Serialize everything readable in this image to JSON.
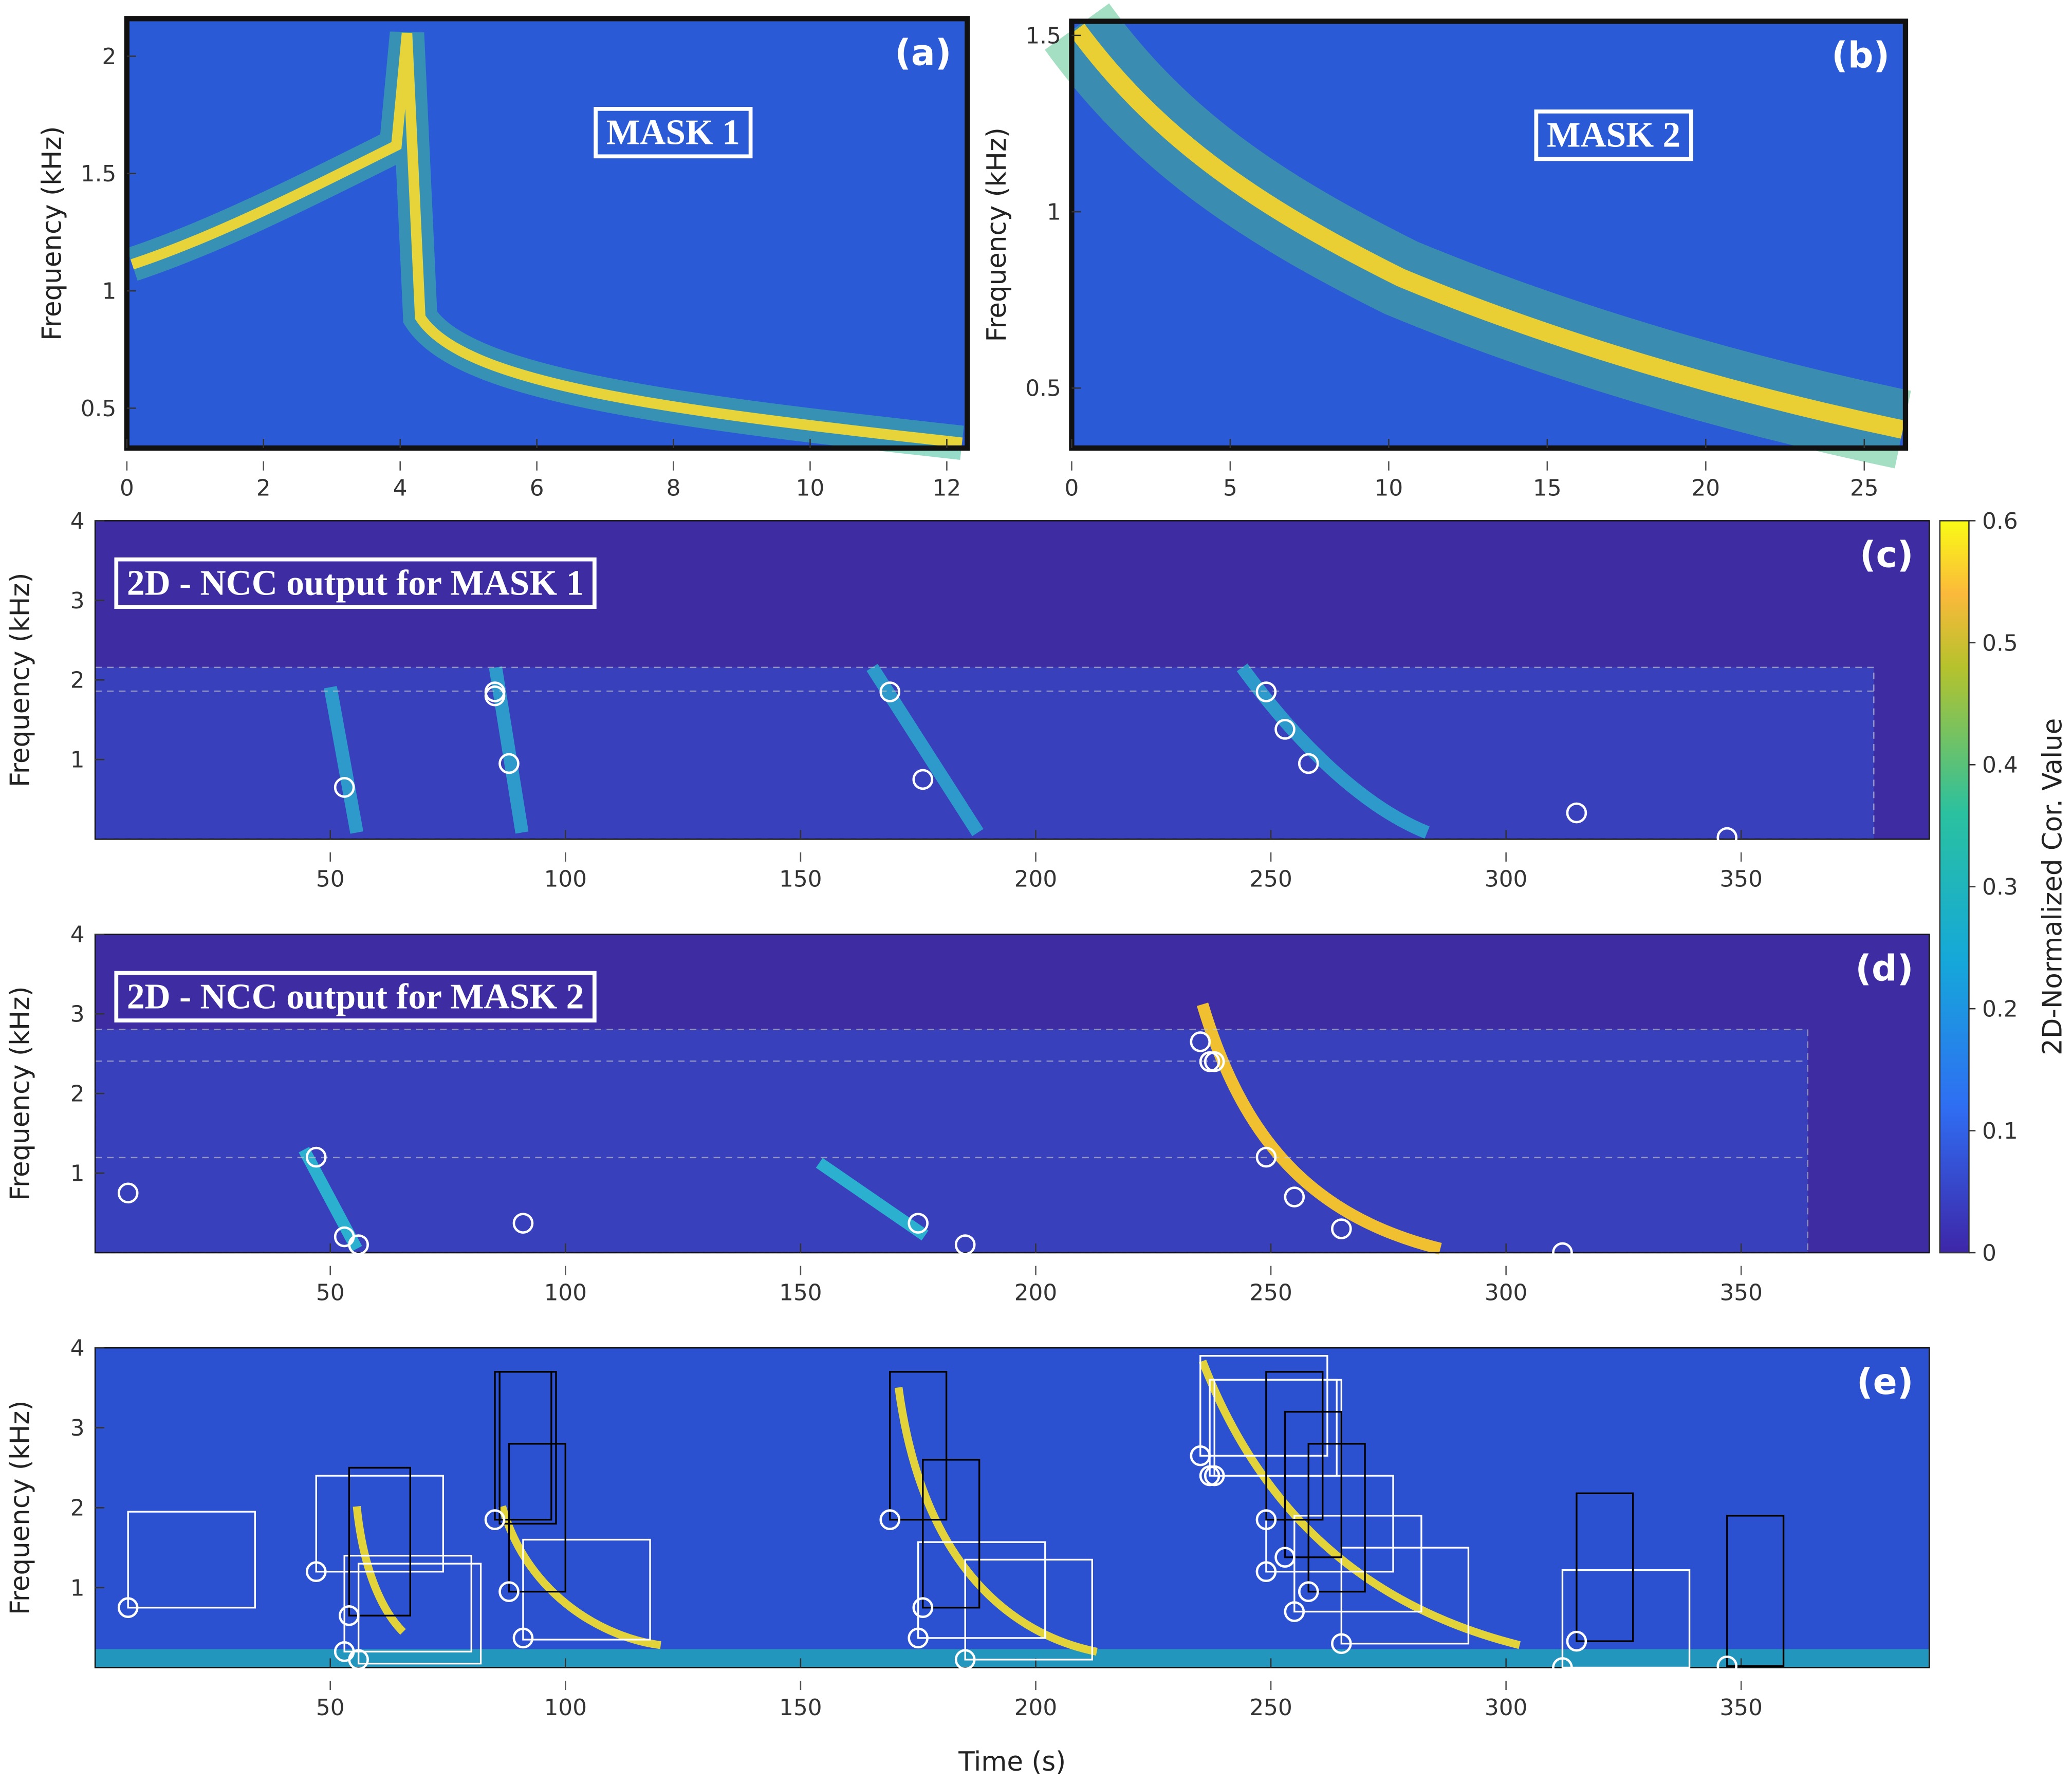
{
  "chart_data": [
    {
      "type": "spectrogram",
      "panel": "(a)",
      "annotation": "MASK 1",
      "ylabel": "Frequency (kHz)",
      "xlim": [
        0,
        12.3
      ],
      "xticks": [
        0,
        2,
        4,
        6,
        8,
        10,
        12
      ],
      "ylim": [
        0.33,
        2.16
      ],
      "yticks": [
        0.5,
        1,
        1.5,
        2
      ]
    },
    {
      "type": "spectrogram",
      "panel": "(b)",
      "annotation": "MASK 2",
      "ylabel": "Frequency (kHz)",
      "xlim": [
        0,
        26.3
      ],
      "xticks": [
        0,
        5,
        10,
        15,
        20,
        25
      ],
      "ylim": [
        0.33,
        1.54
      ],
      "yticks": [
        0.5,
        1,
        1.5
      ]
    },
    {
      "type": "ncc-map",
      "panel": "(c)",
      "title": "2D - NCC output for MASK 1",
      "ylabel": "Frequency (kHz)",
      "xlim": [
        0,
        390
      ],
      "xticks": [
        50,
        100,
        150,
        200,
        250,
        300,
        350
      ],
      "ylim": [
        0,
        4
      ],
      "yticks": [
        1,
        2,
        3,
        4
      ],
      "detections": {
        "x": [
          53,
          85,
          85,
          88,
          169,
          176,
          249,
          253,
          258,
          315,
          347
        ],
        "y": [
          0.65,
          1.8,
          1.85,
          0.95,
          1.85,
          0.75,
          1.85,
          1.38,
          0.95,
          0.33,
          0.02
        ]
      },
      "colorbar": {
        "label": "2D-Normalized Cor. Value",
        "lim": [
          0,
          0.6
        ],
        "ticks": [
          0,
          0.1,
          0.2,
          0.3,
          0.4,
          0.5,
          0.6
        ]
      }
    },
    {
      "type": "ncc-map",
      "panel": "(d)",
      "title": "2D - NCC output for MASK 2",
      "ylabel": "Frequency (kHz)",
      "xlim": [
        0,
        390
      ],
      "xticks": [
        50,
        100,
        150,
        200,
        250,
        300,
        350
      ],
      "ylim": [
        0,
        4
      ],
      "yticks": [
        1,
        2,
        3,
        4
      ],
      "detections": {
        "x": [
          7,
          47,
          53,
          56,
          91,
          175,
          185,
          235,
          237,
          238,
          249,
          255,
          265,
          312
        ],
        "y": [
          0.75,
          1.2,
          0.2,
          0.1,
          0.37,
          0.37,
          0.1,
          2.65,
          2.4,
          2.4,
          1.2,
          0.7,
          0.3,
          0.0
        ]
      }
    },
    {
      "type": "spectrogram",
      "panel": "(e)",
      "ylabel": "Frequency (kHz)",
      "xlabel": "Time (s)",
      "xlim": [
        0,
        390
      ],
      "xticks": [
        50,
        100,
        150,
        200,
        250,
        300,
        350
      ],
      "ylim": [
        0,
        4
      ],
      "yticks": [
        1,
        2,
        3,
        4
      ],
      "detections": {
        "x": [
          7,
          47,
          53,
          54,
          56,
          85,
          88,
          91,
          169,
          175,
          176,
          185,
          235,
          237,
          238,
          249,
          249,
          253,
          255,
          258,
          265,
          312,
          315,
          347
        ],
        "y": [
          0.75,
          1.2,
          0.2,
          0.65,
          0.1,
          1.85,
          0.95,
          0.37,
          1.85,
          0.37,
          0.75,
          0.1,
          2.65,
          2.4,
          2.4,
          1.85,
          1.2,
          1.38,
          0.7,
          0.95,
          0.3,
          0.0,
          0.33,
          0.02
        ]
      },
      "boxes": [
        {
          "color": "#ffffff",
          "values": [
            [
              7,
              34,
              0.75,
              1.95
            ],
            [
              47,
              74,
              1.2,
              2.4
            ],
            [
              53,
              80,
              0.2,
              1.4
            ],
            [
              56,
              82,
              0.05,
              1.3
            ],
            [
              91,
              118,
              0.35,
              1.6
            ],
            [
              175,
              202,
              0.37,
              1.57
            ],
            [
              185,
              212,
              0.1,
              1.35
            ],
            [
              235,
              262,
              2.65,
              3.9
            ],
            [
              237,
              264,
              2.4,
              3.6
            ],
            [
              238,
              265,
              2.4,
              3.6
            ],
            [
              249,
              276,
              1.2,
              2.4
            ],
            [
              255,
              282,
              0.7,
              1.9
            ],
            [
              265,
              292,
              0.3,
              1.5
            ],
            [
              312,
              339,
              0.0,
              1.22
            ]
          ]
        },
        {
          "color": "#000000",
          "values": [
            [
              54,
              67,
              0.65,
              2.5
            ],
            [
              85,
              97,
              1.85,
              3.7
            ],
            [
              86,
              98,
              1.8,
              3.7
            ],
            [
              88,
              100,
              0.95,
              2.8
            ],
            [
              169,
              181,
              1.85,
              3.7
            ],
            [
              176,
              188,
              0.75,
              2.6
            ],
            [
              249,
              261,
              1.85,
              3.7
            ],
            [
              253,
              265,
              1.38,
              3.2
            ],
            [
              258,
              270,
              0.95,
              2.8
            ],
            [
              315,
              327,
              0.33,
              2.18
            ],
            [
              347,
              359,
              0.02,
              1.9
            ]
          ]
        }
      ]
    }
  ]
}
